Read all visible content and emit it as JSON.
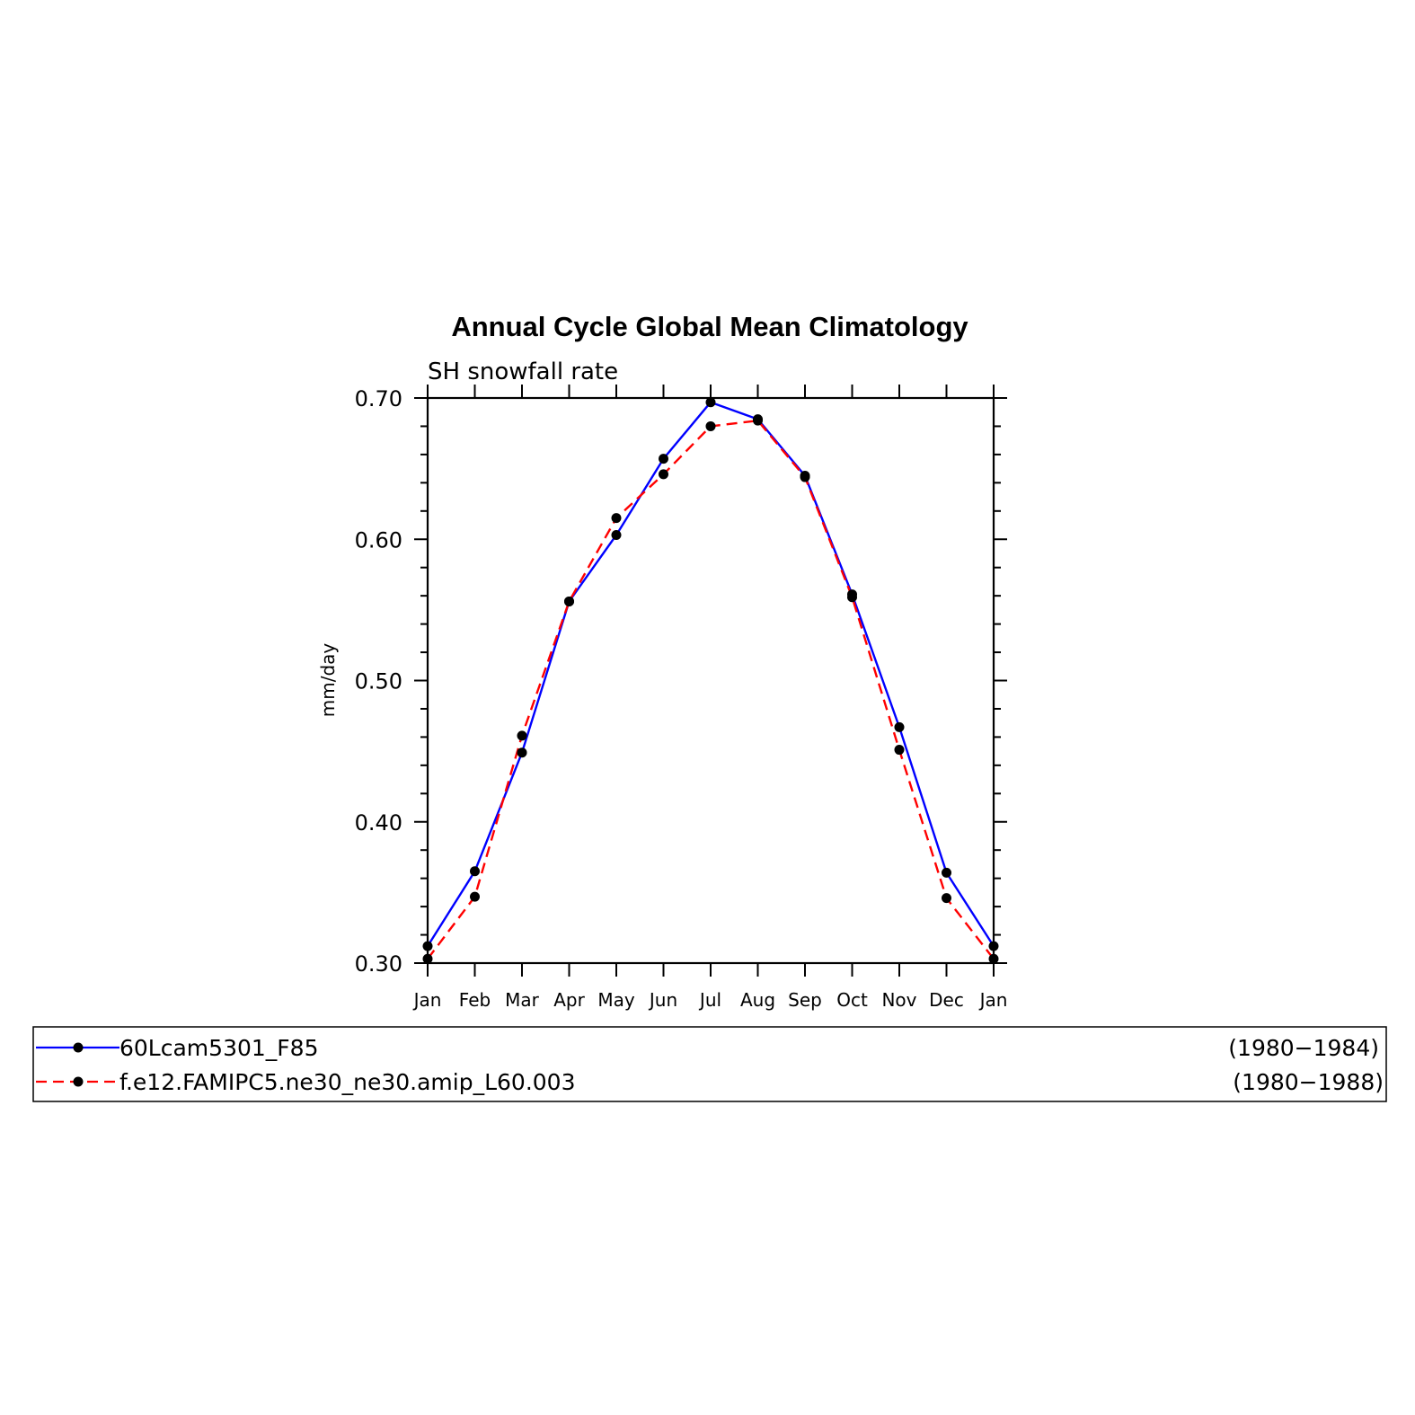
{
  "chart_data": {
    "type": "line",
    "title": "Annual Cycle Global Mean Climatology",
    "subtitle": "SH snowfall rate",
    "ylabel": "mm/day",
    "xlabel": "",
    "ylim": [
      0.3,
      0.7
    ],
    "yticks": [
      "0.30",
      "0.40",
      "0.50",
      "0.60",
      "0.70"
    ],
    "categories": [
      "Jan",
      "Feb",
      "Mar",
      "Apr",
      "May",
      "Jun",
      "Jul",
      "Aug",
      "Sep",
      "Oct",
      "Nov",
      "Dec",
      "Jan"
    ],
    "series": [
      {
        "name": "60Lcam5301_F85",
        "period": "(1980−1984)",
        "color": "#0000ff",
        "dash": "solid",
        "values": [
          0.312,
          0.365,
          0.449,
          0.556,
          0.603,
          0.657,
          0.697,
          0.685,
          0.645,
          0.561,
          0.467,
          0.364,
          0.312
        ]
      },
      {
        "name": "f.e12.FAMIPC5.ne30_ne30.amip_L60.003",
        "period": "(1980−1988)",
        "color": "#ff0000",
        "dash": "dashed",
        "values": [
          0.303,
          0.347,
          0.461,
          0.556,
          0.615,
          0.646,
          0.68,
          0.684,
          0.644,
          0.559,
          0.451,
          0.346,
          0.303
        ]
      }
    ],
    "marker_color": "#000000",
    "grid": false,
    "legend_position": "bottom"
  }
}
